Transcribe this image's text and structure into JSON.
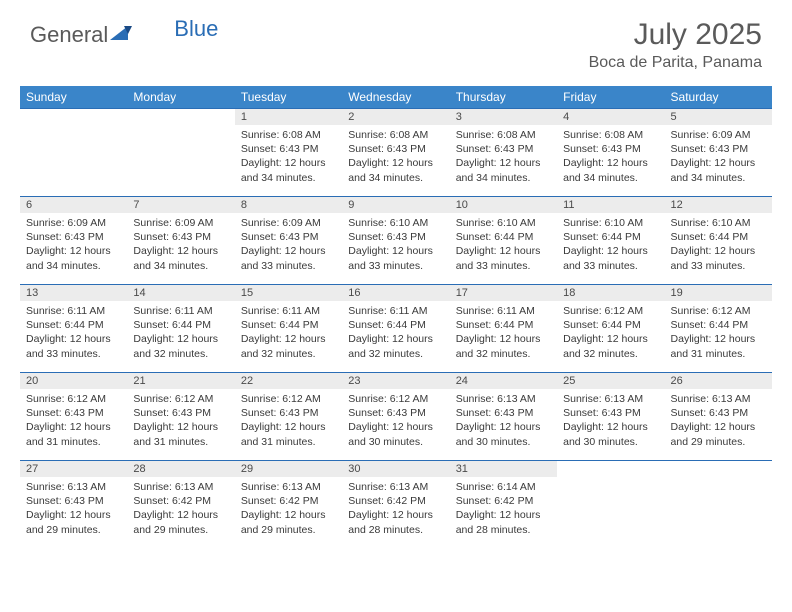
{
  "brand": {
    "word1": "General",
    "word2": "Blue"
  },
  "title": "July 2025",
  "location": "Boca de Parita, Panama",
  "colors": {
    "header_bg": "#3a85c9",
    "border": "#2a6db5",
    "daynum_bg": "#ececec",
    "text": "#3a3a3a",
    "title_text": "#5a5a5a"
  },
  "dayHeaders": [
    "Sunday",
    "Monday",
    "Tuesday",
    "Wednesday",
    "Thursday",
    "Friday",
    "Saturday"
  ],
  "weeks": [
    [
      null,
      null,
      {
        "n": "1",
        "sr": "6:08 AM",
        "ss": "6:43 PM",
        "dl": "12 hours and 34 minutes."
      },
      {
        "n": "2",
        "sr": "6:08 AM",
        "ss": "6:43 PM",
        "dl": "12 hours and 34 minutes."
      },
      {
        "n": "3",
        "sr": "6:08 AM",
        "ss": "6:43 PM",
        "dl": "12 hours and 34 minutes."
      },
      {
        "n": "4",
        "sr": "6:08 AM",
        "ss": "6:43 PM",
        "dl": "12 hours and 34 minutes."
      },
      {
        "n": "5",
        "sr": "6:09 AM",
        "ss": "6:43 PM",
        "dl": "12 hours and 34 minutes."
      }
    ],
    [
      {
        "n": "6",
        "sr": "6:09 AM",
        "ss": "6:43 PM",
        "dl": "12 hours and 34 minutes."
      },
      {
        "n": "7",
        "sr": "6:09 AM",
        "ss": "6:43 PM",
        "dl": "12 hours and 34 minutes."
      },
      {
        "n": "8",
        "sr": "6:09 AM",
        "ss": "6:43 PM",
        "dl": "12 hours and 33 minutes."
      },
      {
        "n": "9",
        "sr": "6:10 AM",
        "ss": "6:43 PM",
        "dl": "12 hours and 33 minutes."
      },
      {
        "n": "10",
        "sr": "6:10 AM",
        "ss": "6:44 PM",
        "dl": "12 hours and 33 minutes."
      },
      {
        "n": "11",
        "sr": "6:10 AM",
        "ss": "6:44 PM",
        "dl": "12 hours and 33 minutes."
      },
      {
        "n": "12",
        "sr": "6:10 AM",
        "ss": "6:44 PM",
        "dl": "12 hours and 33 minutes."
      }
    ],
    [
      {
        "n": "13",
        "sr": "6:11 AM",
        "ss": "6:44 PM",
        "dl": "12 hours and 33 minutes."
      },
      {
        "n": "14",
        "sr": "6:11 AM",
        "ss": "6:44 PM",
        "dl": "12 hours and 32 minutes."
      },
      {
        "n": "15",
        "sr": "6:11 AM",
        "ss": "6:44 PM",
        "dl": "12 hours and 32 minutes."
      },
      {
        "n": "16",
        "sr": "6:11 AM",
        "ss": "6:44 PM",
        "dl": "12 hours and 32 minutes."
      },
      {
        "n": "17",
        "sr": "6:11 AM",
        "ss": "6:44 PM",
        "dl": "12 hours and 32 minutes."
      },
      {
        "n": "18",
        "sr": "6:12 AM",
        "ss": "6:44 PM",
        "dl": "12 hours and 32 minutes."
      },
      {
        "n": "19",
        "sr": "6:12 AM",
        "ss": "6:44 PM",
        "dl": "12 hours and 31 minutes."
      }
    ],
    [
      {
        "n": "20",
        "sr": "6:12 AM",
        "ss": "6:43 PM",
        "dl": "12 hours and 31 minutes."
      },
      {
        "n": "21",
        "sr": "6:12 AM",
        "ss": "6:43 PM",
        "dl": "12 hours and 31 minutes."
      },
      {
        "n": "22",
        "sr": "6:12 AM",
        "ss": "6:43 PM",
        "dl": "12 hours and 31 minutes."
      },
      {
        "n": "23",
        "sr": "6:12 AM",
        "ss": "6:43 PM",
        "dl": "12 hours and 30 minutes."
      },
      {
        "n": "24",
        "sr": "6:13 AM",
        "ss": "6:43 PM",
        "dl": "12 hours and 30 minutes."
      },
      {
        "n": "25",
        "sr": "6:13 AM",
        "ss": "6:43 PM",
        "dl": "12 hours and 30 minutes."
      },
      {
        "n": "26",
        "sr": "6:13 AM",
        "ss": "6:43 PM",
        "dl": "12 hours and 29 minutes."
      }
    ],
    [
      {
        "n": "27",
        "sr": "6:13 AM",
        "ss": "6:43 PM",
        "dl": "12 hours and 29 minutes."
      },
      {
        "n": "28",
        "sr": "6:13 AM",
        "ss": "6:42 PM",
        "dl": "12 hours and 29 minutes."
      },
      {
        "n": "29",
        "sr": "6:13 AM",
        "ss": "6:42 PM",
        "dl": "12 hours and 29 minutes."
      },
      {
        "n": "30",
        "sr": "6:13 AM",
        "ss": "6:42 PM",
        "dl": "12 hours and 28 minutes."
      },
      {
        "n": "31",
        "sr": "6:14 AM",
        "ss": "6:42 PM",
        "dl": "12 hours and 28 minutes."
      },
      null,
      null
    ]
  ],
  "labels": {
    "sunrise": "Sunrise: ",
    "sunset": "Sunset: ",
    "daylight": "Daylight: "
  }
}
